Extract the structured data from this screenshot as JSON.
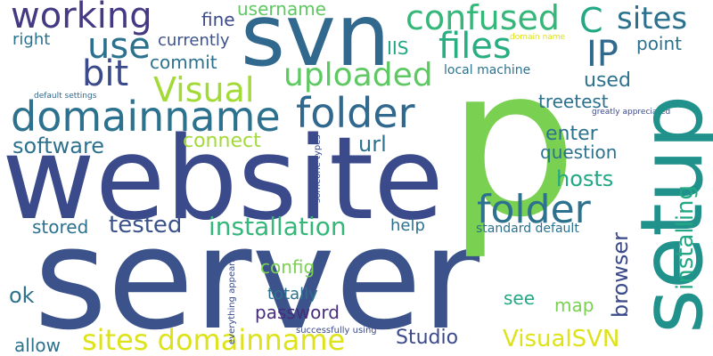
{
  "words": [
    {
      "text": "server",
      "color": "#3b528b"
    },
    {
      "text": "p",
      "color": "#7ad151"
    },
    {
      "text": "website",
      "color": "#3b4a8b"
    },
    {
      "text": "setup",
      "color": "#21918c"
    },
    {
      "text": "svn",
      "color": "#31688e"
    },
    {
      "text": "domainname",
      "color": "#2c728e"
    },
    {
      "text": "folder",
      "color": "#31688e"
    },
    {
      "text": "folder",
      "color": "#2c728e"
    },
    {
      "text": "working",
      "color": "#443983"
    },
    {
      "text": "use",
      "color": "#2c728e"
    },
    {
      "text": "files",
      "color": "#28ae80"
    },
    {
      "text": "confused",
      "color": "#35b779"
    },
    {
      "text": "Visual",
      "color": "#a2da37"
    },
    {
      "text": "uploaded",
      "color": "#5ec962"
    },
    {
      "text": "sites domainname",
      "color": "#dde318"
    },
    {
      "text": "installation",
      "color": "#35b779"
    },
    {
      "text": "C",
      "color": "#22a884"
    },
    {
      "text": "sites",
      "color": "#2c728e"
    },
    {
      "text": "IP",
      "color": "#31688e"
    },
    {
      "text": "bit",
      "color": "#3b4a8b"
    },
    {
      "text": "software",
      "color": "#2c728e"
    },
    {
      "text": "tested",
      "color": "#3b528b"
    },
    {
      "text": "installing",
      "color": "#22a884"
    },
    {
      "text": "username",
      "color": "#5ec962"
    },
    {
      "text": "commit",
      "color": "#2c728e"
    },
    {
      "text": "connect",
      "color": "#a2da37"
    },
    {
      "text": "url",
      "color": "#2c728e"
    },
    {
      "text": "enter",
      "color": "#2c728e"
    },
    {
      "text": "question",
      "color": "#2c728e"
    },
    {
      "text": "hosts",
      "color": "#22a884"
    },
    {
      "text": "used",
      "color": "#2c728e"
    },
    {
      "text": "treetest",
      "color": "#2c728e"
    },
    {
      "text": "point",
      "color": "#2c728e"
    },
    {
      "text": "browser",
      "color": "#3b4a8b"
    },
    {
      "text": "Studio",
      "color": "#3b4a8b"
    },
    {
      "text": "VisualSVN",
      "color": "#dde318"
    },
    {
      "text": "password",
      "color": "#472d7b"
    },
    {
      "text": "config",
      "color": "#7ad151"
    },
    {
      "text": "ok",
      "color": "#2c728e"
    },
    {
      "text": "allow",
      "color": "#2c728e"
    },
    {
      "text": "fine",
      "color": "#3b4a8b"
    },
    {
      "text": "right",
      "color": "#2c728e"
    },
    {
      "text": "currently",
      "color": "#3b528b"
    },
    {
      "text": "IIS",
      "color": "#22a884"
    },
    {
      "text": "stored",
      "color": "#2c728e"
    },
    {
      "text": "help",
      "color": "#2c728e"
    },
    {
      "text": "totally",
      "color": "#2c728e"
    },
    {
      "text": "see",
      "color": "#22a884"
    },
    {
      "text": "map",
      "color": "#7ad151"
    },
    {
      "text": "local machine",
      "color": "#2c728e"
    },
    {
      "text": "standard default",
      "color": "#2c728e"
    },
    {
      "text": "successfully using",
      "color": "#3b4a8b"
    },
    {
      "text": "everything appears",
      "color": "#3b4a8b"
    },
    {
      "text": "someone types",
      "color": "#3b4a8b"
    },
    {
      "text": "default settings",
      "color": "#31688e"
    },
    {
      "text": "domain name",
      "color": "#dde318"
    },
    {
      "text": "greatly appreciated",
      "color": "#3b4a8b"
    }
  ]
}
